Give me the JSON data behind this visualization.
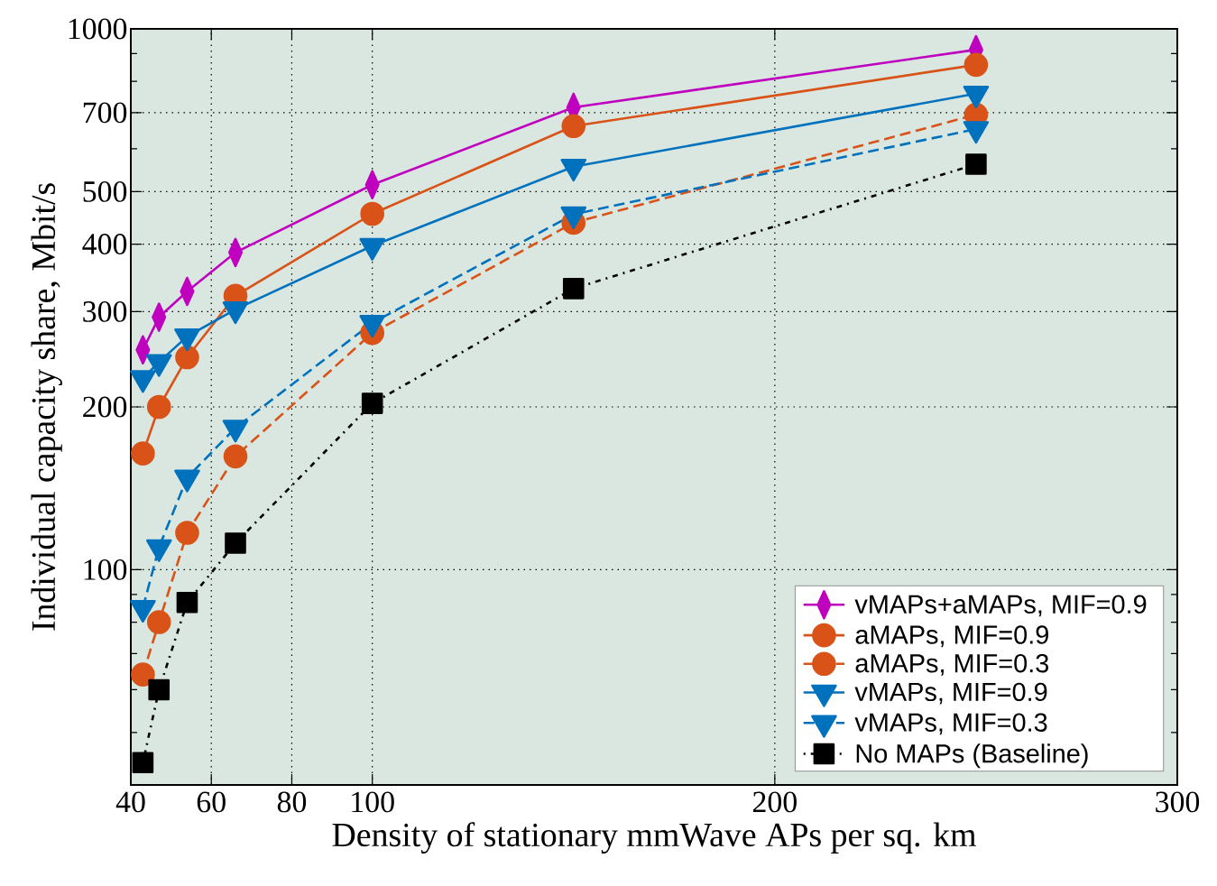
{
  "chart_data": {
    "type": "line",
    "xlabel": "Density of stationary mmWave APs per sq. km",
    "ylabel": "Individual capacity share, Mbit/s",
    "log": "y",
    "grid": true,
    "legend": "bottom right",
    "xlim": [
      40,
      300
    ],
    "xticks": [
      40,
      60,
      80,
      100,
      200,
      300
    ],
    "ylim": [
      40,
      1000
    ],
    "yticks": [
      {
        "value": 50,
        "label": null
      },
      {
        "value": 60,
        "label": null
      },
      {
        "value": 70,
        "label": null
      },
      {
        "value": 80,
        "label": null
      },
      {
        "value": 90,
        "label": null
      },
      100,
      200,
      300,
      400,
      500,
      {
        "value": 600,
        "label": null
      },
      700,
      {
        "value": 800,
        "label": null
      },
      {
        "value": 900,
        "label": null
      },
      1000
    ],
    "x": [
      43,
      47,
      54,
      66,
      100,
      150,
      250
    ],
    "series": [
      {
        "name": "vMAPs+aMAPs, MIF=0.9",
        "color": "#bf00bf",
        "marker": "diamond",
        "line_style": "solid",
        "values": [
          255,
          293,
          327,
          386,
          515,
          716,
          915
        ]
      },
      {
        "name": "aMAPs, MIF=0.9",
        "color": "#d95319",
        "marker": "circle",
        "line_style": "solid",
        "values": [
          164,
          200,
          247,
          321,
          455,
          661,
          858
        ]
      },
      {
        "name": "aMAPs, MIF=0.3",
        "color": "#d95319",
        "marker": "circle",
        "line_style": "dashed",
        "values": [
          64,
          80,
          117,
          162,
          274,
          438,
          694
        ]
      },
      {
        "name": "vMAPs, MIF=0.9",
        "color": "#0072bd",
        "marker": "triangle",
        "line_style": "solid",
        "values": [
          226,
          242,
          270,
          303,
          397,
          556,
          759
        ]
      },
      {
        "name": "vMAPs, MIF=0.3",
        "color": "#0072bd",
        "marker": "triangle",
        "line_style": "dashed",
        "values": [
          85,
          110,
          148,
          183,
          286,
          454,
          653
        ]
      },
      {
        "name": "No MAPs (Baseline)",
        "color": "#000000",
        "marker": "square",
        "line_style": "dotted",
        "values": [
          44,
          60,
          87,
          112,
          203,
          331,
          562
        ]
      }
    ]
  }
}
